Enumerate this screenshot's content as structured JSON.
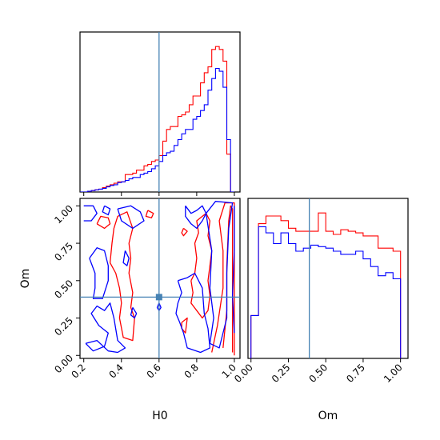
{
  "chart_data": {
    "type": "corner",
    "parameters": [
      "H0",
      "Om"
    ],
    "truths": {
      "H0": 0.6,
      "Om": 0.39
    },
    "colors": {
      "red": "#ff0000",
      "blue": "#0000ff",
      "truth": "#4682b4"
    },
    "axes": {
      "H0": {
        "label": "H0",
        "range": [
          0.18,
          1.03
        ],
        "ticks": [
          "0.2",
          "0.4",
          "0.6",
          "0.8",
          "1.0"
        ],
        "tick_values": [
          0.2,
          0.4,
          0.6,
          0.8,
          1.0
        ]
      },
      "Om": {
        "label": "Om",
        "range": [
          -0.02,
          1.05
        ],
        "ticks": [
          "0.00",
          "0.25",
          "0.50",
          "0.75",
          "1.00"
        ],
        "tick_values": [
          0.0,
          0.25,
          0.5,
          0.75,
          1.0
        ]
      }
    },
    "hist_H0": {
      "edges": [
        0.18,
        0.2,
        0.22,
        0.24,
        0.26,
        0.28,
        0.3,
        0.32,
        0.34,
        0.36,
        0.38,
        0.4,
        0.42,
        0.44,
        0.46,
        0.48,
        0.5,
        0.52,
        0.54,
        0.56,
        0.58,
        0.6,
        0.62,
        0.64,
        0.66,
        0.68,
        0.7,
        0.72,
        0.74,
        0.76,
        0.78,
        0.8,
        0.82,
        0.84,
        0.86,
        0.88,
        0.9,
        0.92,
        0.94,
        0.96,
        0.98,
        1.0
      ],
      "series": [
        {
          "color": "red",
          "values": [
            0.0,
            0.0,
            0.005,
            0.01,
            0.015,
            0.02,
            0.03,
            0.04,
            0.05,
            0.06,
            0.07,
            0.07,
            0.12,
            0.12,
            0.13,
            0.15,
            0.15,
            0.18,
            0.19,
            0.21,
            0.22,
            0.25,
            0.35,
            0.43,
            0.45,
            0.45,
            0.52,
            0.53,
            0.55,
            0.6,
            0.66,
            0.66,
            0.75,
            0.82,
            0.86,
            0.98,
            1.0,
            0.98,
            0.9,
            0.26,
            0.0
          ]
        },
        {
          "color": "blue",
          "values": [
            0.0,
            0.0,
            0.005,
            0.01,
            0.015,
            0.02,
            0.025,
            0.035,
            0.045,
            0.05,
            0.065,
            0.07,
            0.08,
            0.09,
            0.1,
            0.1,
            0.12,
            0.13,
            0.14,
            0.16,
            0.18,
            0.21,
            0.25,
            0.27,
            0.28,
            0.32,
            0.36,
            0.4,
            0.43,
            0.43,
            0.5,
            0.52,
            0.56,
            0.6,
            0.7,
            0.78,
            0.85,
            0.83,
            0.72,
            0.36,
            0.0
          ]
        }
      ]
    },
    "hist_Om": {
      "edges": [
        0.0,
        0.05,
        0.1,
        0.15,
        0.2,
        0.25,
        0.3,
        0.35,
        0.4,
        0.45,
        0.5,
        0.55,
        0.6,
        0.65,
        0.7,
        0.75,
        0.8,
        0.85,
        0.9,
        0.95,
        1.0
      ],
      "series": [
        {
          "color": "red",
          "values": [
            0.28,
            0.88,
            0.93,
            0.93,
            0.9,
            0.85,
            0.83,
            0.83,
            0.83,
            0.95,
            0.83,
            0.81,
            0.84,
            0.83,
            0.82,
            0.8,
            0.8,
            0.72,
            0.72,
            0.7
          ]
        },
        {
          "color": "blue",
          "values": [
            0.28,
            0.86,
            0.82,
            0.75,
            0.82,
            0.75,
            0.7,
            0.72,
            0.74,
            0.73,
            0.72,
            0.7,
            0.68,
            0.68,
            0.7,
            0.65,
            0.6,
            0.54,
            0.56,
            0.52
          ]
        }
      ]
    },
    "contours_2d": [
      {
        "color": "red",
        "paths": [
          [
            [
              0.27,
              0.88
            ],
            [
              0.31,
              0.85
            ],
            [
              0.34,
              0.88
            ],
            [
              0.33,
              0.92
            ],
            [
              0.29,
              0.93
            ],
            [
              0.27,
              0.88
            ]
          ],
          [
            [
              0.35,
              0.75
            ],
            [
              0.34,
              0.62
            ],
            [
              0.37,
              0.55
            ],
            [
              0.39,
              0.45
            ],
            [
              0.4,
              0.35
            ],
            [
              0.39,
              0.25
            ],
            [
              0.41,
              0.12
            ],
            [
              0.46,
              0.1
            ],
            [
              0.47,
              0.25
            ],
            [
              0.45,
              0.32
            ],
            [
              0.46,
              0.42
            ],
            [
              0.44,
              0.55
            ],
            [
              0.45,
              0.65
            ],
            [
              0.44,
              0.75
            ],
            [
              0.46,
              0.85
            ],
            [
              0.43,
              0.96
            ],
            [
              0.38,
              0.93
            ],
            [
              0.36,
              0.85
            ],
            [
              0.35,
              0.75
            ]
          ],
          [
            [
              0.54,
              0.97
            ],
            [
              0.57,
              0.95
            ],
            [
              0.56,
              0.92
            ],
            [
              0.53,
              0.93
            ],
            [
              0.54,
              0.97
            ]
          ],
          [
            [
              0.73,
              0.85
            ],
            [
              0.75,
              0.83
            ],
            [
              0.73,
              0.8
            ],
            [
              0.72,
              0.82
            ],
            [
              0.73,
              0.85
            ]
          ],
          [
            [
              0.77,
              0.5
            ],
            [
              0.79,
              0.55
            ],
            [
              0.8,
              0.65
            ],
            [
              0.79,
              0.75
            ],
            [
              0.81,
              0.82
            ],
            [
              0.8,
              0.9
            ],
            [
              0.83,
              0.93
            ],
            [
              0.85,
              0.95
            ],
            [
              0.87,
              0.9
            ],
            [
              0.86,
              0.8
            ],
            [
              0.88,
              0.7
            ],
            [
              0.87,
              0.6
            ],
            [
              0.86,
              0.5
            ],
            [
              0.87,
              0.4
            ],
            [
              0.86,
              0.3
            ],
            [
              0.83,
              0.25
            ],
            [
              0.8,
              0.3
            ],
            [
              0.77,
              0.35
            ],
            [
              0.78,
              0.42
            ],
            [
              0.77,
              0.5
            ]
          ],
          [
            [
              0.72,
              0.22
            ],
            [
              0.75,
              0.25
            ],
            [
              0.74,
              0.15
            ],
            [
              0.72,
              0.18
            ],
            [
              0.72,
              0.22
            ]
          ],
          [
            [
              0.88,
              0.02
            ],
            [
              0.91,
              0.2
            ],
            [
              0.94,
              0.45
            ],
            [
              0.94,
              0.7
            ],
            [
              0.92,
              0.9
            ],
            [
              0.95,
              1.02
            ],
            [
              1.0,
              1.02
            ],
            [
              1.0,
              0.0
            ]
          ],
          [
            [
              0.94,
              0.05
            ],
            [
              0.96,
              0.3
            ],
            [
              0.96,
              0.6
            ],
            [
              0.97,
              0.9
            ],
            [
              0.98,
              1.0
            ],
            [
              0.99,
              0.98
            ],
            [
              0.99,
              0.02
            ]
          ]
        ]
      },
      {
        "color": "blue",
        "paths": [
          [
            [
              0.2,
              1.0
            ],
            [
              0.25,
              1.0
            ],
            [
              0.27,
              0.95
            ],
            [
              0.24,
              0.9
            ],
            [
              0.2,
              0.9
            ]
          ],
          [
            [
              0.31,
              1.0
            ],
            [
              0.34,
              0.98
            ],
            [
              0.33,
              0.94
            ],
            [
              0.3,
              0.96
            ],
            [
              0.31,
              1.0
            ]
          ],
          [
            [
              0.23,
              0.65
            ],
            [
              0.26,
              0.55
            ],
            [
              0.26,
              0.45
            ],
            [
              0.25,
              0.38
            ],
            [
              0.3,
              0.38
            ],
            [
              0.33,
              0.5
            ],
            [
              0.33,
              0.6
            ],
            [
              0.31,
              0.7
            ],
            [
              0.27,
              0.72
            ],
            [
              0.23,
              0.65
            ]
          ],
          [
            [
              0.21,
              0.08
            ],
            [
              0.25,
              0.03
            ],
            [
              0.31,
              0.06
            ],
            [
              0.33,
              0.15
            ],
            [
              0.28,
              0.2
            ],
            [
              0.24,
              0.28
            ],
            [
              0.27,
              0.33
            ],
            [
              0.31,
              0.3
            ],
            [
              0.34,
              0.35
            ],
            [
              0.36,
              0.25
            ],
            [
              0.38,
              0.1
            ],
            [
              0.42,
              0.05
            ],
            [
              0.38,
              0.02
            ],
            [
              0.33,
              0.03
            ],
            [
              0.27,
              0.1
            ],
            [
              0.21,
              0.08
            ]
          ],
          [
            [
              0.38,
              0.98
            ],
            [
              0.45,
              1.0
            ],
            [
              0.5,
              0.96
            ],
            [
              0.52,
              0.9
            ],
            [
              0.46,
              0.85
            ],
            [
              0.4,
              0.9
            ],
            [
              0.38,
              0.98
            ]
          ],
          [
            [
              0.42,
              0.7
            ],
            [
              0.44,
              0.65
            ],
            [
              0.43,
              0.6
            ],
            [
              0.41,
              0.62
            ],
            [
              0.42,
              0.7
            ]
          ],
          [
            [
              0.46,
              0.32
            ],
            [
              0.48,
              0.28
            ],
            [
              0.47,
              0.25
            ],
            [
              0.45,
              0.27
            ],
            [
              0.46,
              0.32
            ]
          ],
          [
            [
              0.6,
              0.35
            ],
            [
              0.61,
              0.32
            ],
            [
              0.6,
              0.3
            ],
            [
              0.59,
              0.32
            ],
            [
              0.6,
              0.35
            ]
          ],
          [
            [
              0.7,
              0.5
            ],
            [
              0.72,
              0.42
            ],
            [
              0.7,
              0.35
            ],
            [
              0.69,
              0.28
            ],
            [
              0.71,
              0.22
            ],
            [
              0.73,
              0.15
            ],
            [
              0.75,
              0.05
            ],
            [
              0.82,
              0.02
            ],
            [
              0.87,
              0.05
            ],
            [
              0.86,
              0.18
            ],
            [
              0.84,
              0.28
            ],
            [
              0.83,
              0.45
            ],
            [
              0.79,
              0.55
            ],
            [
              0.75,
              0.52
            ],
            [
              0.7,
              0.5
            ]
          ],
          [
            [
              0.74,
              1.0
            ],
            [
              0.77,
              0.95
            ],
            [
              0.8,
              0.97
            ],
            [
              0.83,
              1.0
            ],
            [
              0.85,
              0.95
            ],
            [
              0.83,
              0.9
            ],
            [
              0.8,
              0.85
            ],
            [
              0.77,
              0.88
            ],
            [
              0.74,
              0.93
            ],
            [
              0.74,
              1.0
            ]
          ],
          [
            [
              0.85,
              0.95
            ],
            [
              0.88,
              0.7
            ],
            [
              0.87,
              0.45
            ],
            [
              0.89,
              0.25
            ],
            [
              0.87,
              0.08
            ],
            [
              0.92,
              0.05
            ],
            [
              0.96,
              0.25
            ],
            [
              0.96,
              0.55
            ],
            [
              0.97,
              0.85
            ],
            [
              0.99,
              1.02
            ],
            [
              0.9,
              1.03
            ],
            [
              0.85,
              0.95
            ]
          ],
          [
            [
              1.0,
              0.15
            ],
            [
              0.99,
              0.4
            ],
            [
              1.0,
              0.7
            ],
            [
              1.0,
              1.0
            ]
          ]
        ]
      }
    ]
  }
}
